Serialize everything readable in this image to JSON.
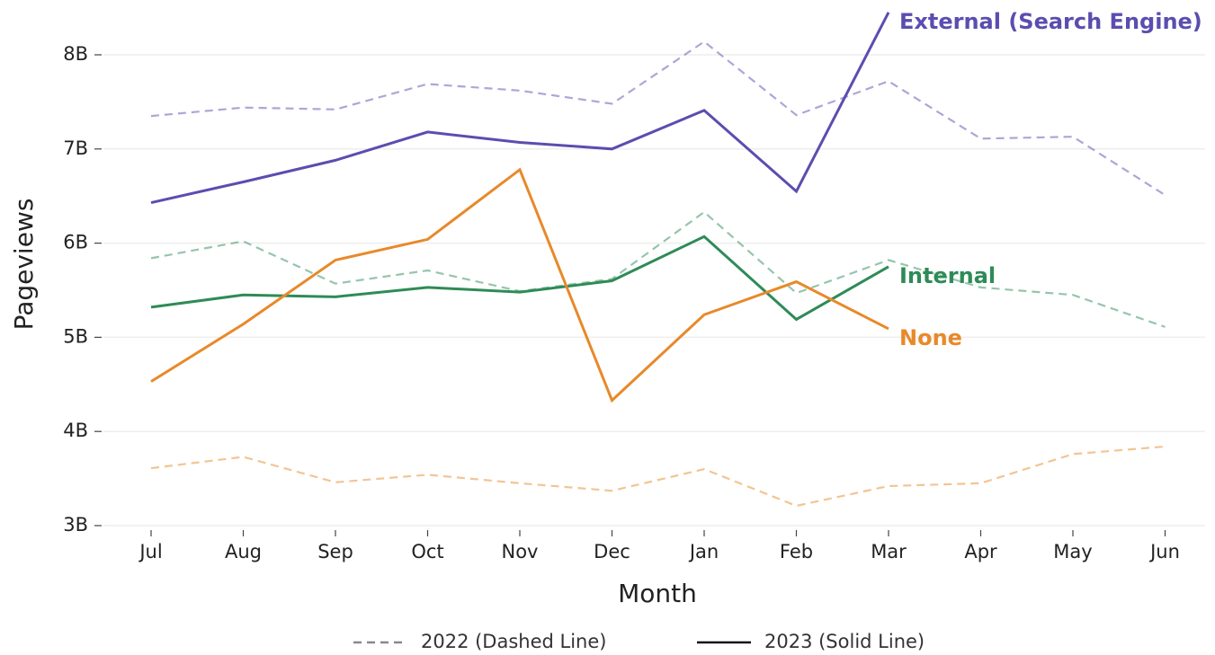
{
  "chart_data": {
    "type": "line",
    "x_label": "Month",
    "y_label": "Pageviews",
    "categories": [
      "Jul",
      "Aug",
      "Sep",
      "Oct",
      "Nov",
      "Dec",
      "Jan",
      "Feb",
      "Mar",
      "Apr",
      "May",
      "Jun"
    ],
    "ylim": [
      3000000000,
      8500000000
    ],
    "yticks": [
      {
        "value": 3000000000,
        "label": "3B"
      },
      {
        "value": 4000000000,
        "label": "4B"
      },
      {
        "value": 5000000000,
        "label": "5B"
      },
      {
        "value": 6000000000,
        "label": "6B"
      },
      {
        "value": 7000000000,
        "label": "7B"
      },
      {
        "value": 8000000000,
        "label": "8B"
      }
    ],
    "grid": true,
    "legend": [
      {
        "label": "2022 (Dashed Line)",
        "style": "dashed",
        "color": "#888888"
      },
      {
        "label": "2023 (Solid Line)",
        "style": "solid",
        "color": "#111111"
      }
    ],
    "series": [
      {
        "name": "External (Search Engine)",
        "color": "#5b4db0",
        "values_2022": [
          7350000000,
          7440000000,
          7420000000,
          7690000000,
          7620000000,
          7480000000,
          8140000000,
          7360000000,
          7720000000,
          7110000000,
          7130000000,
          6510000000
        ],
        "values_2023": [
          6430000000,
          6650000000,
          6880000000,
          7180000000,
          7070000000,
          7000000000,
          7410000000,
          6550000000,
          8450000000,
          null,
          null,
          null
        ]
      },
      {
        "name": "Internal",
        "color": "#2e8b57",
        "values_2022": [
          5840000000,
          6020000000,
          5570000000,
          5710000000,
          5490000000,
          5620000000,
          6330000000,
          5470000000,
          5820000000,
          5530000000,
          5450000000,
          5110000000
        ],
        "values_2023": [
          5320000000,
          5450000000,
          5430000000,
          5530000000,
          5480000000,
          5600000000,
          6070000000,
          5190000000,
          5750000000,
          null,
          null,
          null
        ]
      },
      {
        "name": "None",
        "color": "#e8892a",
        "values_2022": [
          3610000000,
          3730000000,
          3460000000,
          3540000000,
          3450000000,
          3370000000,
          3600000000,
          3210000000,
          3420000000,
          3450000000,
          3760000000,
          3840000000
        ],
        "values_2023": [
          4530000000,
          5140000000,
          5820000000,
          6040000000,
          6780000000,
          4330000000,
          5240000000,
          5590000000,
          5090000000,
          null,
          null,
          null
        ]
      }
    ]
  }
}
